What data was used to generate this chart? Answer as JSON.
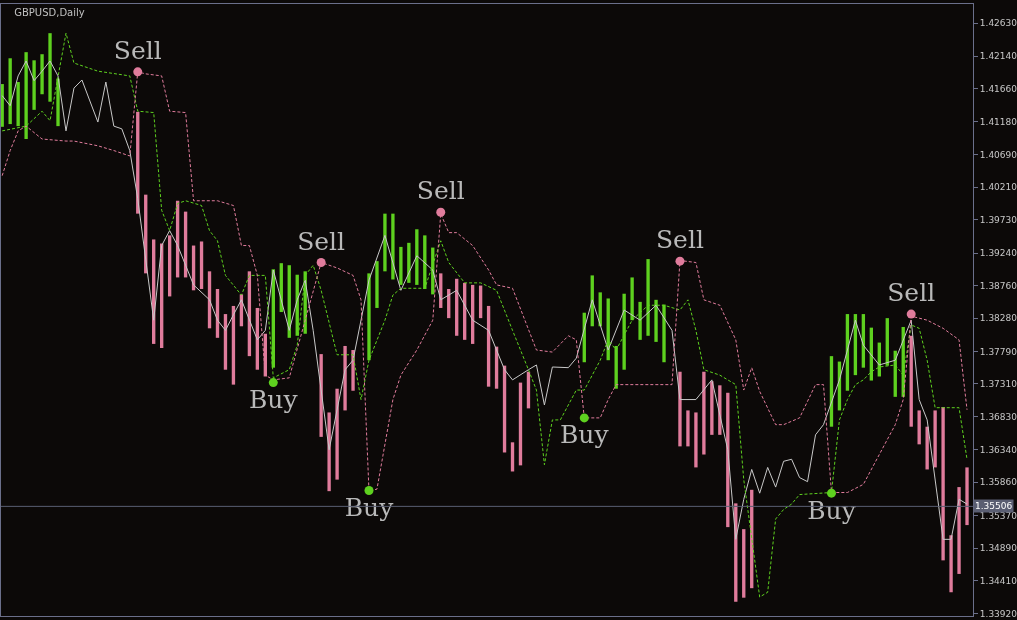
{
  "chart_data": {
    "type": "bar",
    "title": "GBPUSD,Daily",
    "categories": [
      null,
      null,
      null,
      null,
      null,
      null,
      null,
      null,
      null,
      null,
      null,
      null,
      null,
      null,
      null,
      null,
      null,
      null,
      null,
      null,
      null,
      null,
      null,
      null,
      null,
      null,
      null,
      null,
      null,
      null,
      null,
      null,
      null,
      null,
      null,
      null,
      null,
      null,
      null,
      null,
      null,
      null,
      null,
      null,
      null,
      null,
      null,
      null,
      null,
      null,
      null,
      null,
      null,
      null,
      null,
      null,
      null,
      null,
      null,
      null,
      null,
      null,
      null,
      null,
      null,
      null,
      null,
      null,
      null,
      null,
      null,
      null,
      null,
      null,
      null,
      null,
      null,
      null,
      null,
      null,
      null,
      null,
      null,
      null,
      null,
      null,
      null,
      null,
      null,
      null,
      null,
      null,
      null,
      null,
      null,
      null,
      null,
      null,
      null,
      null,
      null,
      null,
      null,
      null,
      null,
      null,
      null,
      null,
      null,
      null,
      null,
      null,
      null,
      null,
      null,
      null,
      null,
      null,
      null,
      null,
      null,
      null
    ],
    "ylim": [
      1.3389,
      1.4291
    ],
    "yticks": [
      {
        "value": 1.4263,
        "label": "1.42630"
      },
      {
        "value": 1.4214,
        "label": "1.42140"
      },
      {
        "value": 1.4166,
        "label": "1.41660"
      },
      {
        "value": 1.4118,
        "label": "1.41180"
      },
      {
        "value": 1.4069,
        "label": "1.40690"
      },
      {
        "value": 1.4021,
        "label": "1.40210"
      },
      {
        "value": 1.3973,
        "label": "1.39730"
      },
      {
        "value": 1.3924,
        "label": "1.39240"
      },
      {
        "value": 1.3876,
        "label": "1.38760"
      },
      {
        "value": 1.3828,
        "label": "1.38280"
      },
      {
        "value": 1.3779,
        "label": "1.37790"
      },
      {
        "value": 1.3731,
        "label": "1.37310"
      },
      {
        "value": 1.3683,
        "label": "1.36830"
      },
      {
        "value": 1.3634,
        "label": "1.36340"
      },
      {
        "value": 1.3586,
        "label": "1.35860"
      },
      {
        "value": 1.3537,
        "label": "1.35370"
      },
      {
        "value": 1.3489,
        "label": "1.34890"
      },
      {
        "value": 1.3441,
        "label": "1.34410"
      },
      {
        "value": 1.3392,
        "label": "1.33920"
      }
    ],
    "tick_labels": "y",
    "legend": false,
    "ref_lines": [
      {
        "axis": "y",
        "value": 1.35506,
        "label": "1.35506",
        "color": "#5a5e72"
      }
    ],
    "series": [
      {
        "base": [
          1.411,
          1.4114,
          1.4111,
          1.4092,
          1.4135,
          1.4158,
          1.4147,
          1.4111,
          null,
          null,
          null,
          null,
          null,
          null,
          null,
          null,
          null,
          1.3982,
          1.3894,
          1.379,
          1.3784,
          1.386,
          1.3888,
          1.3888,
          1.3869,
          1.3871,
          1.3813,
          1.3799,
          1.3752,
          1.373,
          1.3816,
          1.3772,
          1.3752,
          1.3742,
          1.3755,
          1.3837,
          1.3799,
          1.3802,
          1.3805,
          null,
          1.3653,
          1.3573,
          1.359,
          1.3692,
          1.3721,
          null,
          1.3766,
          1.3843,
          1.3897,
          1.3885,
          1.3877,
          1.388,
          1.3877,
          1.3871,
          1.3863,
          1.3843,
          1.3828,
          1.3802,
          1.3796,
          1.379,
          1.3828,
          1.3727,
          1.3724,
          1.363,
          1.3602,
          1.3611,
          1.3695,
          null,
          null,
          null,
          null,
          null,
          null,
          1.3763,
          1.3816,
          1.3816,
          1.3766,
          1.3724,
          1.3752,
          1.3825,
          1.3796,
          1.3802,
          1.3793,
          1.3763,
          null,
          1.3639,
          1.3639,
          1.3608,
          1.3627,
          1.3656,
          1.3656,
          1.352,
          1.341,
          1.3416,
          1.343,
          null,
          null,
          null,
          null,
          null,
          null,
          null,
          null,
          null,
          1.3668,
          1.3692,
          1.3721,
          1.3744,
          1.3755,
          1.3736,
          1.3742,
          1.3758,
          1.3712,
          1.3712,
          1.3668,
          1.3642,
          1.3605,
          1.3608,
          1.3471,
          1.3424,
          1.3451,
          1.3523
        ],
        "values": [
          0.0063,
          0.0097,
          0.0065,
          0.0128,
          0.0073,
          0.0059,
          0.0101,
          0.007,
          null,
          null,
          null,
          null,
          null,
          null,
          null,
          null,
          null,
          0.015,
          0.0116,
          0.0154,
          0.0154,
          0.009,
          0.0113,
          0.0097,
          0.0066,
          0.007,
          0.0084,
          0.0072,
          0.0082,
          0.0116,
          0.0047,
          0.0125,
          0.0091,
          0.0063,
          0.0145,
          0.0072,
          0.0107,
          0.009,
          0.0092,
          null,
          0.0122,
          0.0116,
          0.0134,
          0.0095,
          0.006,
          null,
          0.0128,
          0.0069,
          0.0085,
          0.0097,
          0.0056,
          0.0059,
          0.0082,
          0.0079,
          0.0069,
          0.0051,
          0.0043,
          0.0084,
          0.0084,
          0.0087,
          0.0048,
          0.0119,
          0.0062,
          0.0128,
          0.0043,
          0.0122,
          0.0054,
          null,
          null,
          null,
          null,
          null,
          null,
          0.0073,
          0.0075,
          0.005,
          0.0091,
          0.0063,
          0.0112,
          0.0063,
          0.0056,
          0.0113,
          0.0062,
          0.0085,
          null,
          0.011,
          0.0053,
          0.0081,
          0.0122,
          0.0079,
          0.0073,
          0.0198,
          0.0145,
          0.0101,
          0.0145,
          null,
          null,
          null,
          null,
          null,
          null,
          null,
          null,
          null,
          0.0104,
          0.0072,
          0.0113,
          0.009,
          0.0079,
          0.0078,
          0.005,
          0.007,
          0.0068,
          0.0103,
          0.0134,
          0.005,
          0.0063,
          0.0084,
          0.0226,
          0.0084,
          0.0128,
          0.0085
        ],
        "colors": [
          "#5ed11f",
          "#5ed11f",
          "#5ed11f",
          "#5ed11f",
          "#5ed11f",
          "#5ed11f",
          "#5ed11f",
          "#5ed11f",
          null,
          null,
          null,
          null,
          null,
          null,
          null,
          null,
          null,
          "#e07c9c",
          "#e07c9c",
          "#e07c9c",
          "#e07c9c",
          "#e07c9c",
          "#e07c9c",
          "#e07c9c",
          "#e07c9c",
          "#e07c9c",
          "#e07c9c",
          "#e07c9c",
          "#e07c9c",
          "#e07c9c",
          "#e07c9c",
          "#e07c9c",
          "#e07c9c",
          "#e07c9c",
          "#5ed11f",
          "#5ed11f",
          "#5ed11f",
          "#5ed11f",
          "#5ed11f",
          null,
          "#e07c9c",
          "#e07c9c",
          "#e07c9c",
          "#e07c9c",
          "#e07c9c",
          null,
          "#5ed11f",
          "#5ed11f",
          "#5ed11f",
          "#5ed11f",
          "#5ed11f",
          "#5ed11f",
          "#5ed11f",
          "#5ed11f",
          "#5ed11f",
          "#e07c9c",
          "#e07c9c",
          "#e07c9c",
          "#e07c9c",
          "#e07c9c",
          "#e07c9c",
          "#e07c9c",
          "#e07c9c",
          "#e07c9c",
          "#e07c9c",
          "#e07c9c",
          "#e07c9c",
          null,
          null,
          null,
          null,
          null,
          null,
          "#5ed11f",
          "#5ed11f",
          "#5ed11f",
          "#5ed11f",
          "#5ed11f",
          "#5ed11f",
          "#5ed11f",
          "#5ed11f",
          "#5ed11f",
          "#5ed11f",
          "#5ed11f",
          null,
          "#e07c9c",
          "#e07c9c",
          "#e07c9c",
          "#e07c9c",
          "#e07c9c",
          "#e07c9c",
          "#e07c9c",
          "#e07c9c",
          "#e07c9c",
          "#e07c9c",
          null,
          null,
          null,
          null,
          null,
          null,
          null,
          null,
          null,
          "#5ed11f",
          "#5ed11f",
          "#5ed11f",
          "#5ed11f",
          "#5ed11f",
          "#5ed11f",
          "#5ed11f",
          "#5ed11f",
          "#5ed11f",
          "#5ed11f",
          "#e07c9c",
          "#e07c9c",
          "#e07c9c",
          "#e07c9c",
          "#e07c9c",
          "#e07c9c",
          "#e07c9c",
          "#e07c9c"
        ]
      },
      {
        "type": "line",
        "color": "#c8c8c8",
        "line_style": "solid",
        "values": [
          1.4156,
          1.4141,
          1.4185,
          1.4207,
          1.4178,
          1.4192,
          1.4207,
          1.4185,
          1.4104,
          1.4167,
          1.4179,
          null,
          1.4117,
          1.4176,
          1.4111,
          1.4107,
          1.4075,
          1.4004,
          null,
          1.3825,
          1.3935,
          1.3957,
          1.3935,
          1.3906,
          1.3877,
          null,
          1.3855,
          1.3825,
          1.381,
          1.3833,
          1.3855,
          null,
          1.3796,
          1.381,
          1.3899,
          null,
          1.381,
          1.3855,
          1.3884,
          1.381,
          null,
          1.3634,
          null,
          1.3752,
          1.3766,
          null,
          1.3884,
          null,
          1.395,
          null,
          1.3869,
          null,
          1.392,
          null,
          1.3899,
          1.3855,
          null,
          1.3869,
          null,
          1.3825,
          null,
          1.381,
          null,
          1.3752,
          1.3737,
          null,
          1.3752,
          1.3759,
          1.37,
          1.3756,
          null,
          1.3755,
          1.3769,
          null,
          1.3855,
          null,
          1.3781,
          null,
          1.384,
          null,
          1.3825,
          null,
          1.3847,
          null,
          1.381,
          1.3708,
          null,
          1.3708,
          null,
          1.3737,
          null,
          1.3634,
          1.3502,
          1.3561,
          1.3605,
          1.357,
          1.3608,
          1.3579,
          1.3617,
          1.362,
          1.3593,
          1.3587,
          1.3656,
          1.3671,
          null,
          1.3737,
          null,
          1.3825,
          1.3788,
          null,
          1.3759,
          null,
          1.3766,
          null,
          1.3825,
          1.3708,
          1.3678,
          null,
          1.3502,
          1.3502,
          1.3561,
          1.3554
        ]
      },
      {
        "type": "line",
        "color": "#5ed11f",
        "line_style": "dashed",
        "values": [
          1.4104,
          null,
          null,
          1.4111,
          null,
          1.4133,
          1.4119,
          null,
          1.4248,
          1.4204,
          null,
          null,
          1.4192,
          null,
          null,
          null,
          1.4185,
          1.4133,
          null,
          1.4131,
          1.3987,
          1.3957,
          1.3997,
          1.4001,
          null,
          1.3994,
          1.3957,
          1.3942,
          1.3891,
          null,
          1.3862,
          1.3891,
          null,
          1.3891,
          1.374,
          null,
          1.3752,
          1.3788,
          1.3891,
          1.3906,
          1.3869,
          null,
          1.3774,
          null,
          1.3774,
          1.3708,
          1.3766,
          null,
          1.3825,
          1.3862,
          1.3872,
          null,
          null,
          1.3872,
          null,
          1.3942,
          1.391,
          null,
          1.388,
          null,
          1.388,
          null,
          1.3869,
          null,
          1.381,
          null,
          1.3752,
          1.3722,
          1.3612,
          1.3678,
          1.3678,
          null,
          1.3722,
          1.3722,
          null,
          1.3766,
          1.3796,
          1.3781,
          null,
          1.3825,
          null,
          1.3847,
          null,
          1.3847,
          null,
          1.384,
          1.3855,
          1.381,
          1.3752,
          null,
          1.3744,
          null,
          1.373,
          1.359,
          null,
          1.3417,
          1.3424,
          1.3532,
          1.3546,
          1.3554,
          1.3568,
          null,
          null,
          null,
          1.3571,
          1.3678,
          1.3708,
          1.373,
          1.3737,
          1.3749,
          1.3756,
          null,
          1.3759,
          1.3744,
          1.3818,
          1.3813,
          1.3766,
          1.3696,
          null,
          null,
          1.3696,
          1.362
        ]
      },
      {
        "type": "line",
        "color": "#e07c9c",
        "line_style": "dashed",
        "values": [
          1.4038,
          1.4075,
          1.4104,
          1.4111,
          null,
          1.4092,
          null,
          null,
          1.4089,
          1.4089,
          null,
          null,
          1.4082,
          null,
          1.4075,
          null,
          1.4067,
          1.4191,
          1.4188,
          null,
          1.4185,
          1.4133,
          null,
          1.4131,
          1.4001,
          null,
          null,
          1.4001,
          null,
          1.3994,
          1.3935,
          1.3935,
          1.3891,
          1.3744,
          1.3737,
          null,
          1.374,
          null,
          null,
          null,
          1.391,
          null,
          1.3902,
          null,
          1.3891,
          1.3855,
          1.3573,
          1.3576,
          null,
          1.3708,
          1.3744,
          null,
          1.3781,
          null,
          1.3825,
          1.3982,
          1.3954,
          1.3954,
          null,
          1.3935,
          null,
          1.3899,
          1.3877,
          null,
          1.3872,
          null,
          null,
          1.3781,
          null,
          1.3778,
          null,
          1.3802,
          1.3796,
          1.3681,
          null,
          1.3681,
          1.3708,
          1.373,
          null,
          null,
          null,
          null,
          1.373,
          null,
          1.373,
          1.3913,
          null,
          1.391,
          1.3855,
          null,
          1.3847,
          null,
          1.3796,
          1.3722,
          1.3755,
          1.372,
          null,
          1.3671,
          1.3671,
          null,
          1.3681,
          null,
          1.373,
          1.373,
          1.3571,
          null,
          1.3571,
          null,
          1.3583,
          null,
          1.3627,
          null,
          1.3671,
          1.3708,
          1.3831,
          null,
          1.3825,
          null,
          1.3813,
          null,
          1.3796,
          1.3693
        ]
      },
      {
        "type": "scatter",
        "color": "#e07c9c",
        "marker": "circle",
        "values": [
          null,
          null,
          null,
          null,
          null,
          null,
          null,
          null,
          null,
          null,
          null,
          null,
          null,
          null,
          null,
          null,
          null,
          1.4191,
          null,
          null,
          null,
          null,
          null,
          null,
          null,
          null,
          null,
          null,
          null,
          null,
          null,
          null,
          null,
          null,
          null,
          null,
          null,
          null,
          null,
          null,
          1.391,
          null,
          null,
          null,
          null,
          null,
          null,
          null,
          null,
          null,
          null,
          null,
          null,
          null,
          null,
          1.3984,
          null,
          null,
          null,
          null,
          null,
          null,
          null,
          null,
          null,
          null,
          null,
          null,
          null,
          null,
          null,
          null,
          null,
          null,
          null,
          null,
          null,
          null,
          null,
          null,
          null,
          null,
          null,
          null,
          null,
          1.3912,
          null,
          null,
          null,
          null,
          null,
          null,
          null,
          null,
          null,
          null,
          null,
          null,
          null,
          null,
          null,
          null,
          null,
          null,
          null,
          null,
          null,
          null,
          null,
          null,
          null,
          null,
          null,
          null,
          1.3834,
          null,
          null,
          null,
          null,
          null,
          null,
          null
        ],
        "value_labels": [
          null,
          null,
          null,
          null,
          null,
          null,
          null,
          null,
          null,
          null,
          null,
          null,
          null,
          null,
          null,
          null,
          null,
          "Sell",
          null,
          null,
          null,
          null,
          null,
          null,
          null,
          null,
          null,
          null,
          null,
          null,
          null,
          null,
          null,
          null,
          null,
          null,
          null,
          null,
          null,
          null,
          "Sell",
          null,
          null,
          null,
          null,
          null,
          null,
          null,
          null,
          null,
          null,
          null,
          null,
          null,
          null,
          "Sell",
          null,
          null,
          null,
          null,
          null,
          null,
          null,
          null,
          null,
          null,
          null,
          null,
          null,
          null,
          null,
          null,
          null,
          null,
          null,
          null,
          null,
          null,
          null,
          null,
          null,
          null,
          null,
          null,
          null,
          "Sell",
          null,
          null,
          null,
          null,
          null,
          null,
          null,
          null,
          null,
          null,
          null,
          null,
          null,
          null,
          null,
          null,
          null,
          null,
          null,
          null,
          null,
          null,
          null,
          null,
          null,
          null,
          null,
          null,
          "Sell",
          null,
          null,
          null,
          null,
          null,
          null,
          null
        ]
      },
      {
        "type": "scatter",
        "color": "#5ed11f",
        "marker": "circle",
        "values": [
          null,
          null,
          null,
          null,
          null,
          null,
          null,
          null,
          null,
          null,
          null,
          null,
          null,
          null,
          null,
          null,
          null,
          null,
          null,
          null,
          null,
          null,
          null,
          null,
          null,
          null,
          null,
          null,
          null,
          null,
          null,
          null,
          null,
          null,
          1.3733,
          null,
          null,
          null,
          null,
          null,
          null,
          null,
          null,
          null,
          null,
          null,
          1.3574,
          null,
          null,
          null,
          null,
          null,
          null,
          null,
          null,
          null,
          null,
          null,
          null,
          null,
          null,
          null,
          null,
          null,
          null,
          null,
          null,
          null,
          null,
          null,
          null,
          null,
          null,
          1.3681,
          null,
          null,
          null,
          null,
          null,
          null,
          null,
          null,
          null,
          null,
          null,
          null,
          null,
          null,
          null,
          null,
          null,
          null,
          null,
          null,
          null,
          null,
          null,
          null,
          null,
          null,
          null,
          null,
          null,
          null,
          1.357,
          null,
          null,
          null,
          null,
          null,
          null,
          null,
          null,
          null,
          null,
          null,
          null,
          null,
          null,
          null,
          null,
          null
        ],
        "value_labels": [
          null,
          null,
          null,
          null,
          null,
          null,
          null,
          null,
          null,
          null,
          null,
          null,
          null,
          null,
          null,
          null,
          null,
          null,
          null,
          null,
          null,
          null,
          null,
          null,
          null,
          null,
          null,
          null,
          null,
          null,
          null,
          null,
          null,
          null,
          "Buy",
          null,
          null,
          null,
          null,
          null,
          null,
          null,
          null,
          null,
          null,
          null,
          "Buy",
          null,
          null,
          null,
          null,
          null,
          null,
          null,
          null,
          null,
          null,
          null,
          null,
          null,
          null,
          null,
          null,
          null,
          null,
          null,
          null,
          null,
          null,
          null,
          null,
          null,
          null,
          "Buy",
          null,
          null,
          null,
          null,
          null,
          null,
          null,
          null,
          null,
          null,
          null,
          null,
          null,
          null,
          null,
          null,
          null,
          null,
          null,
          null,
          null,
          null,
          null,
          null,
          null,
          null,
          null,
          null,
          null,
          null,
          "Buy",
          null,
          null,
          null,
          null,
          null,
          null,
          null,
          null,
          null,
          null,
          null,
          null,
          null,
          null,
          null,
          null,
          null
        ]
      }
    ]
  }
}
